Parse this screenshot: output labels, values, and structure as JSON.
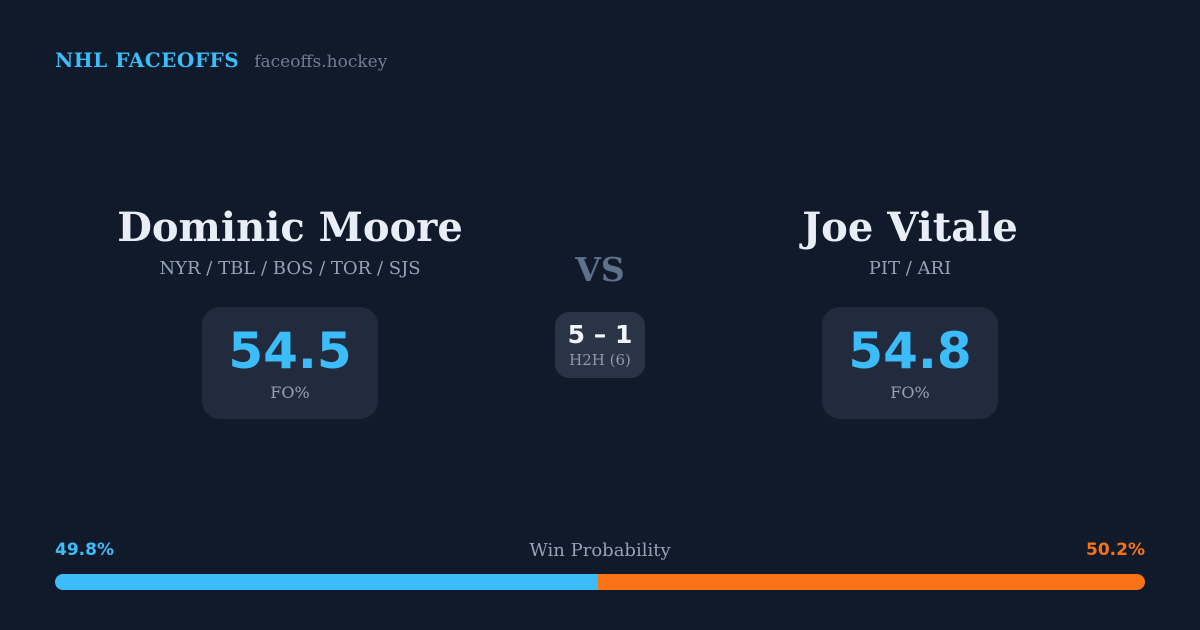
{
  "header": {
    "brand": "NHL FACEOFFS",
    "domain": "faceoffs.hockey"
  },
  "players": {
    "left": {
      "name": "Dominic Moore",
      "teams": "NYR / TBL / BOS / TOR / SJS",
      "fo_pct": "54.5",
      "fo_label": "FO%"
    },
    "right": {
      "name": "Joe Vitale",
      "teams": "PIT / ARI",
      "fo_pct": "54.8",
      "fo_label": "FO%"
    }
  },
  "matchup": {
    "vs_label": "VS",
    "h2h_score": "5 – 1",
    "h2h_label": "H2H (6)"
  },
  "win_probability": {
    "title": "Win Probability",
    "left_label": "49.8%",
    "right_label": "50.2%",
    "left_value": 49.8,
    "right_value": 50.2
  },
  "colors": {
    "background": "#111a2b",
    "card": "#212b3d",
    "h2h_card": "#2a3447",
    "accent_blue": "#3cbcf8",
    "accent_orange": "#f97316"
  }
}
